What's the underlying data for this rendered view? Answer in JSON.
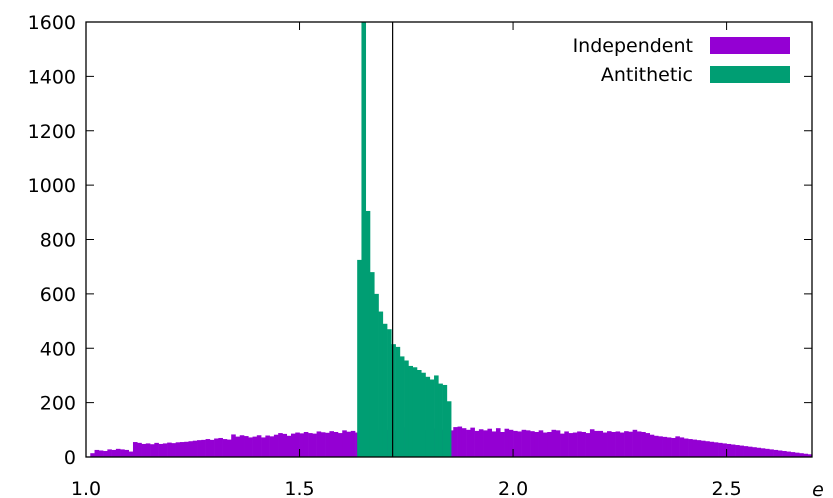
{
  "chart_data": {
    "type": "bar",
    "x_axis": {
      "label": "e",
      "range": [
        1.0,
        2.7
      ],
      "ticks": [
        "1.0",
        "1.5",
        "2.0",
        "2.5"
      ],
      "tick_values": [
        1.0,
        1.5,
        2.0,
        2.5
      ]
    },
    "y_axis": {
      "range": [
        0,
        1600
      ],
      "ticks": [
        "0",
        "200",
        "400",
        "600",
        "800",
        "1000",
        "1200",
        "1400",
        "1600"
      ],
      "tick_values": [
        0,
        200,
        400,
        600,
        800,
        1000,
        1200,
        1400,
        1600
      ]
    },
    "reference_line_x": 1.718,
    "legend_position": "top-right",
    "series": [
      {
        "name": "Independent",
        "color": "#9400d3",
        "bin_start": 1.0,
        "bin_width": 0.01,
        "values": [
          2,
          14,
          26,
          24,
          22,
          28,
          26,
          30,
          28,
          26,
          20,
          55,
          52,
          48,
          50,
          47,
          52,
          48,
          50,
          53,
          51,
          54,
          55,
          56,
          58,
          60,
          62,
          63,
          66,
          63,
          68,
          70,
          66,
          64,
          83,
          75,
          80,
          77,
          72,
          75,
          80,
          72,
          79,
          76,
          82,
          88,
          85,
          78,
          86,
          90,
          87,
          92,
          88,
          86,
          94,
          91,
          89,
          95,
          92,
          88,
          98,
          93,
          96,
          90,
          95,
          88,
          96,
          104,
          98,
          92,
          100,
          95,
          98,
          91,
          109,
          99,
          112,
          96,
          105,
          100,
          110,
          105,
          102,
          100,
          108,
          98,
          110,
          112,
          106,
          100,
          108,
          96,
          102,
          98,
          104,
          94,
          106,
          92,
          104,
          100,
          96,
          94,
          100,
          98,
          95,
          92,
          98,
          90,
          92,
          100,
          98,
          86,
          94,
          88,
          90,
          94,
          92,
          88,
          102,
          96,
          96,
          90,
          95,
          92,
          94,
          90,
          95,
          93,
          100,
          94,
          92,
          88,
          82,
          78,
          76,
          74,
          72,
          70,
          76,
          72,
          68,
          66,
          64,
          62,
          60,
          58,
          56,
          54,
          52,
          50,
          48,
          46,
          44,
          42,
          40,
          38,
          36,
          34,
          32,
          30,
          28,
          26,
          24,
          22,
          20,
          18,
          16,
          14,
          12,
          10
        ]
      },
      {
        "name": "Antithetic",
        "color": "#009e73",
        "bin_start": 1.635,
        "bin_width": 0.01,
        "values": [
          725,
          1600,
          905,
          680,
          600,
          535,
          490,
          470,
          415,
          405,
          370,
          355,
          335,
          330,
          320,
          310,
          295,
          285,
          300,
          270,
          265,
          205
        ]
      }
    ]
  }
}
